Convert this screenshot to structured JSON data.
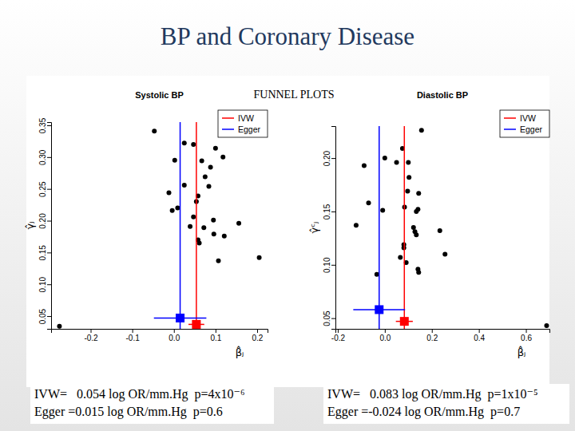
{
  "title": "BP and Coronary Disease",
  "subtitle": "FUNNEL PLOTS",
  "chart_data": [
    {
      "type": "scatter",
      "title": "Systolic BP",
      "x_label": "β̂ⱼ",
      "y_label": "γ̂ⱼ",
      "color": "#000000",
      "marker": "circle",
      "legend": "top-right",
      "x": [
        -0.047,
        0.025,
        0.047,
        0.002,
        0.1,
        0.118,
        0.067,
        0.088,
        0.075,
        0.025,
        0.084,
        0.058,
        -0.012,
        0.054,
        0.009,
        -0.004,
        0.047,
        0.095,
        0.156,
        0.039,
        0.072,
        0.096,
        0.121,
        0.058,
        0.061,
        0.107,
        0.205,
        -0.275
      ],
      "values": [
        0.341,
        0.322,
        0.32,
        0.295,
        0.314,
        0.3,
        0.294,
        0.284,
        0.269,
        0.256,
        0.254,
        0.239,
        0.244,
        0.23,
        0.22,
        0.216,
        0.206,
        0.201,
        0.196,
        0.191,
        0.189,
        0.179,
        0.176,
        0.17,
        0.165,
        0.137,
        0.142,
        0.034
      ],
      "series": [
        {
          "name": "IVW",
          "color": "#ff0000",
          "type": "line",
          "marker": "square",
          "value": 0.054,
          "error": 0.019,
          "y": 0.037
        },
        {
          "name": "Egger",
          "color": "#0000ff",
          "type": "line",
          "marker": "square",
          "value": 0.015,
          "error": 0.063,
          "y": 0.047
        }
      ],
      "xlim": [
        -0.295,
        0.225
      ],
      "xticks": [
        -0.2,
        -0.1,
        {
          "value": 0,
          "label": "0.0"
        },
        0.1,
        0.2
      ],
      "ylim": [
        0.03,
        0.355
      ],
      "yticks": [
        0.05,
        {
          "value": 0.1,
          "label": "0.10"
        },
        0.15,
        {
          "value": 0.2,
          "label": "0.20"
        },
        0.25,
        {
          "value": 0.3,
          "label": "0.30"
        },
        0.35
      ],
      "annotations": [
        "IVW=   0.054 log OR/mm.Hg  p=4x10⁻⁶",
        "Egger =0.015 log OR/mm.Hg  p=0.6"
      ]
    },
    {
      "type": "scatter",
      "title": "Diastolic BP",
      "x_label": "β̂ⱼ",
      "y_label": "γ̂ᶜⱼ",
      "color": "#000000",
      "marker": "circle",
      "legend": "top-right",
      "x": [
        0.156,
        0.075,
        -0.088,
        0.0,
        0.05,
        0.1,
        0.103,
        0.097,
        0.144,
        -0.069,
        -0.009,
        0.084,
        0.141,
        0.134,
        -0.122,
        0.122,
        0.128,
        0.234,
        0.134,
        0.081,
        0.081,
        0.066,
        0.091,
        0.141,
        0.256,
        0.144,
        -0.034,
        0.688
      ],
      "values": [
        0.226,
        0.209,
        0.193,
        0.2,
        0.196,
        0.196,
        0.182,
        0.169,
        0.167,
        0.158,
        0.151,
        0.154,
        0.152,
        0.15,
        0.137,
        0.135,
        0.131,
        0.132,
        0.128,
        0.119,
        0.116,
        0.107,
        0.102,
        0.096,
        0.11,
        0.093,
        0.091,
        0.043
      ],
      "series": [
        {
          "name": "IVW",
          "color": "#ff0000",
          "type": "line",
          "marker": "square",
          "value": 0.083,
          "error": 0.036,
          "y": 0.047
        },
        {
          "name": "Egger",
          "color": "#0000ff",
          "type": "line",
          "marker": "square",
          "value": -0.024,
          "error": 0.11,
          "y": 0.058
        }
      ],
      "xlim": [
        -0.21,
        0.7
      ],
      "xticks": [
        -0.2,
        {
          "value": 0,
          "label": "0.0"
        },
        0.2,
        0.4,
        0.6
      ],
      "ylim": [
        0.04,
        0.23
      ],
      "yticks": [
        0.05,
        {
          "value": 0.1,
          "label": "0.10"
        },
        0.15,
        {
          "value": 0.2,
          "label": "0.20"
        }
      ],
      "annotations": [
        "IVW=   0.083 log OR/mm.Hg  p=1x10⁻⁵",
        "Egger =-0.024 log OR/mm.Hg  p=0.7"
      ]
    }
  ]
}
